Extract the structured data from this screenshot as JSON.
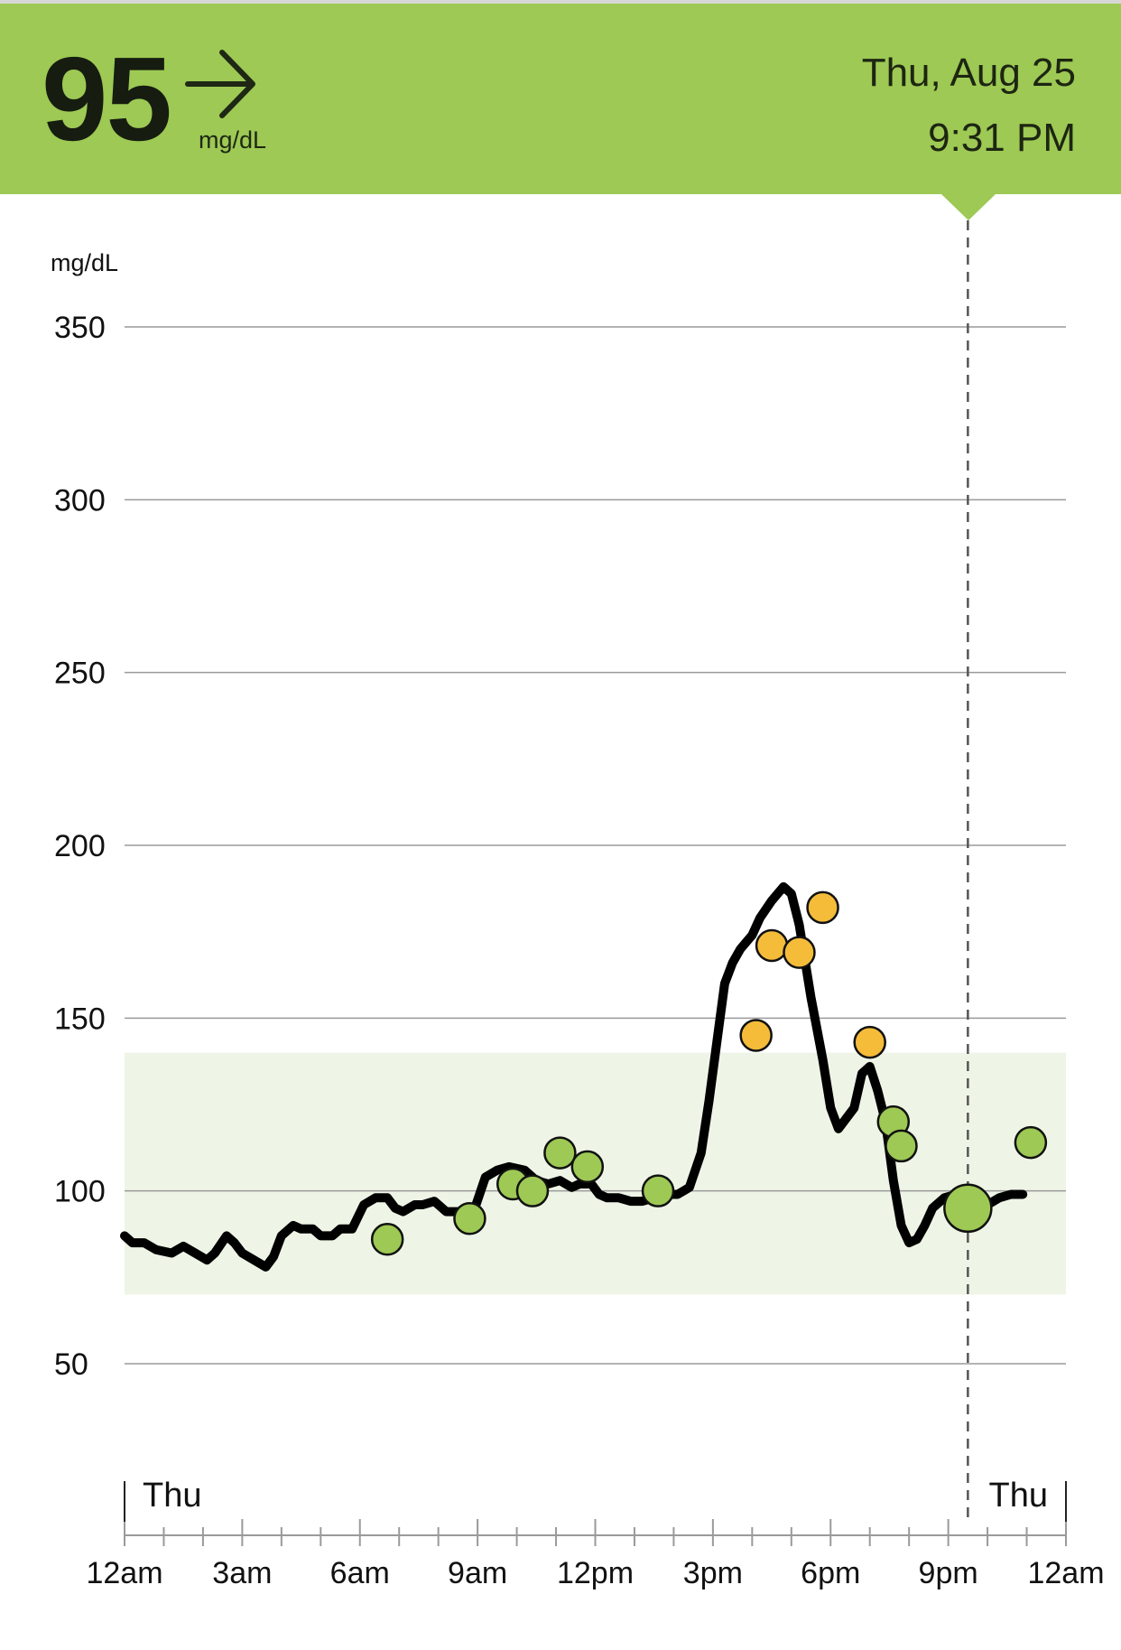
{
  "header": {
    "current_value": "95",
    "unit": "mg/dL",
    "trend_icon": "arrow-right-icon",
    "date": "Thu, Aug 25",
    "time": "9:31 PM"
  },
  "colors": {
    "header_bg": "#9dc954",
    "in_range": "#9dc954",
    "high": "#f5bc3a",
    "target_band": "#eef5e6",
    "trace": "#000000"
  },
  "chart_data": {
    "type": "line",
    "y_unit_label": "mg/dL",
    "ylim": [
      0,
      350
    ],
    "y_ticks": [
      350,
      300,
      250,
      200,
      150,
      100,
      50
    ],
    "target_range": [
      70,
      140
    ],
    "x_range_hours": [
      0,
      24
    ],
    "x_tick_labels": [
      "12am",
      "3am",
      "6am",
      "9am",
      "12pm",
      "3pm",
      "6pm",
      "9pm",
      "12am"
    ],
    "day_labels": [
      "Thu",
      "Thu"
    ],
    "current_time_hour": 21.5,
    "grid": true,
    "series": [
      {
        "kind": "sensor-trace",
        "x": [
          0,
          0.2,
          0.5,
          0.8,
          1.2,
          1.5,
          1.8,
          2.1,
          2.3,
          2.6,
          2.8,
          3.0,
          3.3,
          3.6,
          3.8,
          4.0,
          4.3,
          4.5,
          4.8,
          5.0,
          5.3,
          5.5,
          5.8,
          6.1,
          6.4,
          6.7,
          6.9,
          7.1,
          7.4,
          7.6,
          7.9,
          8.2,
          8.4,
          8.6,
          8.9,
          9.2,
          9.5,
          9.8,
          10.2,
          10.5,
          10.8,
          11.1,
          11.4,
          11.6,
          11.9,
          12.1,
          12.3,
          12.6,
          12.9,
          13.2,
          13.5,
          13.8,
          14.1,
          14.4,
          14.7,
          14.9,
          15.1,
          15.3,
          15.5,
          15.7,
          16.0,
          16.2,
          16.5,
          16.8,
          17.0,
          17.2,
          17.5,
          17.8,
          18.0,
          18.2,
          18.4,
          18.6,
          18.8,
          19.0,
          19.2,
          19.4,
          19.6,
          19.8,
          20.0,
          20.2,
          20.4,
          20.6,
          20.9,
          21.2,
          21.5,
          21.7,
          22.0,
          22.3,
          22.6,
          22.9
        ],
        "y": [
          87,
          85,
          85,
          83,
          82,
          84,
          82,
          80,
          82,
          87,
          85,
          82,
          80,
          78,
          81,
          87,
          90,
          89,
          89,
          87,
          87,
          89,
          89,
          96,
          98,
          98,
          95,
          94,
          96,
          96,
          97,
          94,
          94,
          94,
          94,
          104,
          106,
          107,
          106,
          103,
          102,
          103,
          101,
          102,
          102,
          99,
          98,
          98,
          97,
          97,
          98,
          99,
          99,
          101,
          111,
          126,
          143,
          160,
          166,
          170,
          174,
          179,
          184,
          188,
          186,
          177,
          156,
          138,
          124,
          118,
          121,
          124,
          134,
          136,
          129,
          120,
          103,
          90,
          85,
          86,
          90,
          95,
          98,
          99,
          95,
          94,
          96,
          98,
          99,
          99
        ]
      }
    ],
    "readings": [
      {
        "x": 6.7,
        "y": 86,
        "level": "in-range"
      },
      {
        "x": 8.8,
        "y": 92,
        "level": "in-range"
      },
      {
        "x": 9.9,
        "y": 102,
        "level": "in-range"
      },
      {
        "x": 10.4,
        "y": 100,
        "level": "in-range"
      },
      {
        "x": 11.1,
        "y": 111,
        "level": "in-range"
      },
      {
        "x": 11.8,
        "y": 107,
        "level": "in-range"
      },
      {
        "x": 13.6,
        "y": 100,
        "level": "in-range"
      },
      {
        "x": 16.1,
        "y": 145,
        "level": "high"
      },
      {
        "x": 16.5,
        "y": 171,
        "level": "high"
      },
      {
        "x": 17.2,
        "y": 169,
        "level": "high"
      },
      {
        "x": 17.8,
        "y": 182,
        "level": "high"
      },
      {
        "x": 19.0,
        "y": 143,
        "level": "high"
      },
      {
        "x": 19.6,
        "y": 120,
        "level": "in-range"
      },
      {
        "x": 19.8,
        "y": 113,
        "level": "in-range"
      },
      {
        "x": 21.5,
        "y": 95,
        "level": "in-range",
        "current": true
      },
      {
        "x": 23.1,
        "y": 114,
        "level": "in-range"
      }
    ]
  }
}
